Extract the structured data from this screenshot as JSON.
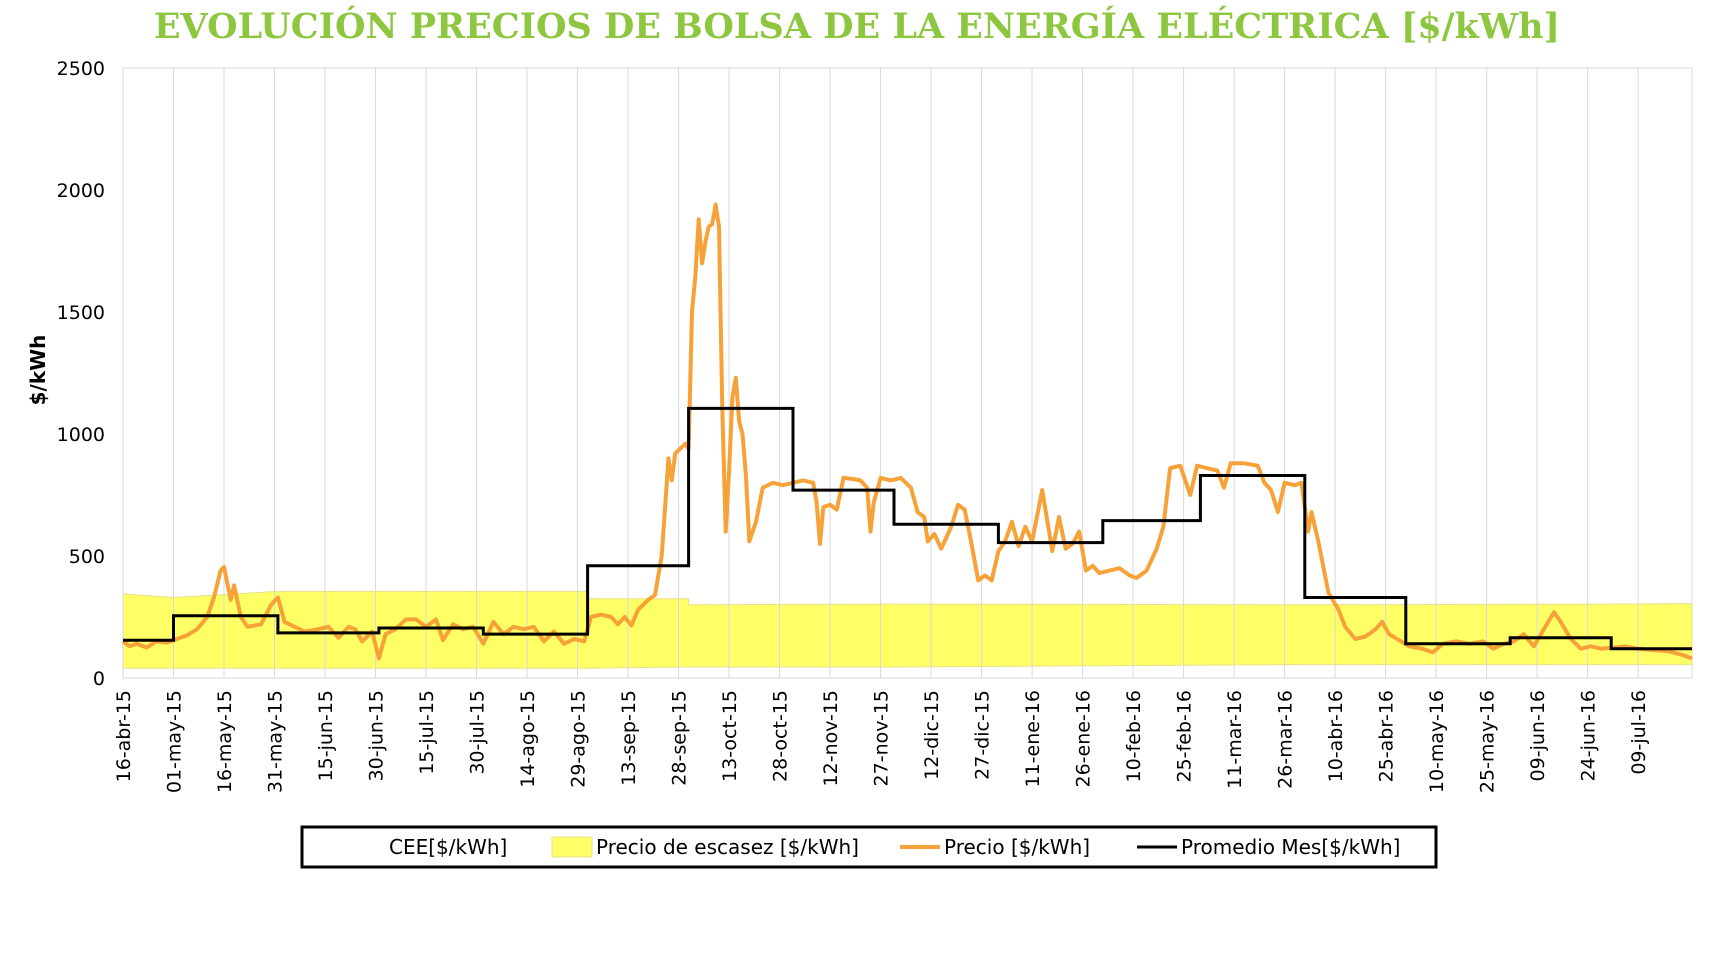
{
  "chart_data": {
    "type": "line",
    "title": "EVOLUCIÓN PRECIOS DE BOLSA DE LA ENERGÍA ELÉCTRICA [$/kWh]",
    "xlabel": "",
    "ylabel": "$/kWh",
    "ylim": [
      0,
      2500
    ],
    "yticks": [
      0,
      500,
      1000,
      1500,
      2000,
      2500
    ],
    "xlim": [
      "2015-04-16",
      "2016-07-25"
    ],
    "x_tick_labels": [
      "16-abr-15",
      "01-may-15",
      "16-may-15",
      "31-may-15",
      "15-jun-15",
      "30-jun-15",
      "15-jul-15",
      "30-jul-15",
      "14-ago-15",
      "29-ago-15",
      "13-sep-15",
      "28-sep-15",
      "13-oct-15",
      "28-oct-15",
      "12-nov-15",
      "27-nov-15",
      "12-dic-15",
      "27-dic-15",
      "11-ene-16",
      "26-ene-16",
      "10-feb-16",
      "25-feb-16",
      "11-mar-16",
      "26-mar-16",
      "10-abr-16",
      "25-abr-16",
      "10-may-16",
      "25-may-16",
      "09-jun-16",
      "24-jun-16",
      "09-jul-16"
    ],
    "grid": "vertical",
    "legend_position": "bottom",
    "legend": [
      {
        "name": "CEE[$/kWh]",
        "style": "none"
      },
      {
        "name": "Precio de escasez [$/kWh]",
        "style": "area"
      },
      {
        "name": "Precio [$/kWh]",
        "style": "line"
      },
      {
        "name": "Promedio Mes[$/kWh]",
        "style": "line"
      }
    ],
    "series": [
      {
        "name": "Precio de escasez [$/kWh]",
        "type": "band",
        "color": "#ffff66",
        "points": [
          {
            "x": "2015-04-16",
            "low": 40,
            "high": 345
          },
          {
            "x": "2015-05-01",
            "low": 40,
            "high": 330
          },
          {
            "x": "2015-06-01",
            "low": 40,
            "high": 355
          },
          {
            "x": "2015-09-01",
            "low": 40,
            "high": 355
          },
          {
            "x": "2015-09-01",
            "low": 40,
            "high": 325
          },
          {
            "x": "2015-10-01",
            "low": 45,
            "high": 325
          },
          {
            "x": "2015-10-01",
            "low": 45,
            "high": 300
          },
          {
            "x": "2015-12-01",
            "low": 45,
            "high": 303
          },
          {
            "x": "2016-04-01",
            "low": 55,
            "high": 300
          },
          {
            "x": "2016-07-01",
            "low": 55,
            "high": 303
          },
          {
            "x": "2016-07-25",
            "low": 55,
            "high": 305
          }
        ]
      },
      {
        "name": "Precio [$/kWh]",
        "type": "line",
        "color": "#f7a239",
        "points": [
          [
            "2015-04-16",
            150
          ],
          [
            "2015-04-18",
            130
          ],
          [
            "2015-04-20",
            140
          ],
          [
            "2015-04-23",
            125
          ],
          [
            "2015-04-26",
            150
          ],
          [
            "2015-04-29",
            145
          ],
          [
            "2015-05-02",
            160
          ],
          [
            "2015-05-05",
            175
          ],
          [
            "2015-05-08",
            200
          ],
          [
            "2015-05-11",
            250
          ],
          [
            "2015-05-13",
            330
          ],
          [
            "2015-05-15",
            440
          ],
          [
            "2015-05-16",
            455
          ],
          [
            "2015-05-18",
            320
          ],
          [
            "2015-05-19",
            380
          ],
          [
            "2015-05-21",
            250
          ],
          [
            "2015-05-23",
            210
          ],
          [
            "2015-05-27",
            220
          ],
          [
            "2015-05-30",
            300
          ],
          [
            "2015-06-01",
            330
          ],
          [
            "2015-06-03",
            230
          ],
          [
            "2015-06-06",
            210
          ],
          [
            "2015-06-09",
            190
          ],
          [
            "2015-06-13",
            200
          ],
          [
            "2015-06-16",
            210
          ],
          [
            "2015-06-19",
            165
          ],
          [
            "2015-06-22",
            210
          ],
          [
            "2015-06-24",
            200
          ],
          [
            "2015-06-26",
            150
          ],
          [
            "2015-06-29",
            190
          ],
          [
            "2015-07-01",
            80
          ],
          [
            "2015-07-03",
            180
          ],
          [
            "2015-07-06",
            200
          ],
          [
            "2015-07-09",
            240
          ],
          [
            "2015-07-12",
            240
          ],
          [
            "2015-07-15",
            210
          ],
          [
            "2015-07-18",
            240
          ],
          [
            "2015-07-20",
            155
          ],
          [
            "2015-07-23",
            220
          ],
          [
            "2015-07-26",
            200
          ],
          [
            "2015-07-29",
            210
          ],
          [
            "2015-08-01",
            140
          ],
          [
            "2015-08-04",
            230
          ],
          [
            "2015-08-07",
            180
          ],
          [
            "2015-08-10",
            210
          ],
          [
            "2015-08-13",
            200
          ],
          [
            "2015-08-16",
            210
          ],
          [
            "2015-08-19",
            150
          ],
          [
            "2015-08-22",
            190
          ],
          [
            "2015-08-25",
            140
          ],
          [
            "2015-08-28",
            160
          ],
          [
            "2015-08-31",
            150
          ],
          [
            "2015-09-02",
            250
          ],
          [
            "2015-09-05",
            260
          ],
          [
            "2015-09-08",
            250
          ],
          [
            "2015-09-10",
            220
          ],
          [
            "2015-09-12",
            250
          ],
          [
            "2015-09-14",
            215
          ],
          [
            "2015-09-16",
            280
          ],
          [
            "2015-09-19",
            320
          ],
          [
            "2015-09-21",
            340
          ],
          [
            "2015-09-23",
            500
          ],
          [
            "2015-09-24",
            700
          ],
          [
            "2015-09-25",
            900
          ],
          [
            "2015-09-26",
            810
          ],
          [
            "2015-09-27",
            920
          ],
          [
            "2015-09-30",
            960
          ],
          [
            "2015-10-01",
            940
          ],
          [
            "2015-10-02",
            1500
          ],
          [
            "2015-10-03",
            1650
          ],
          [
            "2015-10-04",
            1880
          ],
          [
            "2015-10-05",
            1700
          ],
          [
            "2015-10-06",
            1790
          ],
          [
            "2015-10-07",
            1850
          ],
          [
            "2015-10-08",
            1860
          ],
          [
            "2015-10-09",
            1940
          ],
          [
            "2015-10-10",
            1850
          ],
          [
            "2015-10-11",
            1100
          ],
          [
            "2015-10-12",
            600
          ],
          [
            "2015-10-13",
            850
          ],
          [
            "2015-10-14",
            1150
          ],
          [
            "2015-10-15",
            1230
          ],
          [
            "2015-10-16",
            1050
          ],
          [
            "2015-10-17",
            1000
          ],
          [
            "2015-10-18",
            830
          ],
          [
            "2015-10-19",
            560
          ],
          [
            "2015-10-21",
            640
          ],
          [
            "2015-10-23",
            780
          ],
          [
            "2015-10-26",
            800
          ],
          [
            "2015-10-29",
            790
          ],
          [
            "2015-11-01",
            800
          ],
          [
            "2015-11-04",
            810
          ],
          [
            "2015-11-07",
            800
          ],
          [
            "2015-11-08",
            720
          ],
          [
            "2015-11-09",
            550
          ],
          [
            "2015-11-10",
            700
          ],
          [
            "2015-11-12",
            710
          ],
          [
            "2015-11-14",
            690
          ],
          [
            "2015-11-16",
            820
          ],
          [
            "2015-11-19",
            815
          ],
          [
            "2015-11-21",
            810
          ],
          [
            "2015-11-23",
            780
          ],
          [
            "2015-11-24",
            600
          ],
          [
            "2015-11-25",
            720
          ],
          [
            "2015-11-27",
            820
          ],
          [
            "2015-11-30",
            810
          ],
          [
            "2015-12-03",
            820
          ],
          [
            "2015-12-06",
            780
          ],
          [
            "2015-12-08",
            680
          ],
          [
            "2015-12-10",
            660
          ],
          [
            "2015-12-11",
            560
          ],
          [
            "2015-12-13",
            590
          ],
          [
            "2015-12-15",
            530
          ],
          [
            "2015-12-18",
            620
          ],
          [
            "2015-12-20",
            710
          ],
          [
            "2015-12-22",
            690
          ],
          [
            "2015-12-24",
            550
          ],
          [
            "2015-12-26",
            400
          ],
          [
            "2015-12-28",
            420
          ],
          [
            "2015-12-30",
            400
          ],
          [
            "2016-01-01",
            520
          ],
          [
            "2016-01-03",
            560
          ],
          [
            "2016-01-05",
            640
          ],
          [
            "2016-01-07",
            540
          ],
          [
            "2016-01-09",
            620
          ],
          [
            "2016-01-11",
            560
          ],
          [
            "2016-01-14",
            770
          ],
          [
            "2016-01-17",
            520
          ],
          [
            "2016-01-19",
            660
          ],
          [
            "2016-01-21",
            530
          ],
          [
            "2016-01-23",
            550
          ],
          [
            "2016-01-25",
            600
          ],
          [
            "2016-01-27",
            440
          ],
          [
            "2016-01-29",
            460
          ],
          [
            "2016-01-31",
            430
          ],
          [
            "2016-02-03",
            440
          ],
          [
            "2016-02-06",
            450
          ],
          [
            "2016-02-09",
            420
          ],
          [
            "2016-02-11",
            410
          ],
          [
            "2016-02-14",
            440
          ],
          [
            "2016-02-17",
            530
          ],
          [
            "2016-02-19",
            620
          ],
          [
            "2016-02-21",
            860
          ],
          [
            "2016-02-24",
            870
          ],
          [
            "2016-02-27",
            750
          ],
          [
            "2016-02-29",
            870
          ],
          [
            "2016-03-03",
            860
          ],
          [
            "2016-03-06",
            850
          ],
          [
            "2016-03-08",
            780
          ],
          [
            "2016-03-10",
            880
          ],
          [
            "2016-03-14",
            880
          ],
          [
            "2016-03-18",
            870
          ],
          [
            "2016-03-20",
            800
          ],
          [
            "2016-03-22",
            770
          ],
          [
            "2016-03-24",
            680
          ],
          [
            "2016-03-26",
            800
          ],
          [
            "2016-03-29",
            790
          ],
          [
            "2016-03-31",
            800
          ],
          [
            "2016-04-02",
            600
          ],
          [
            "2016-04-03",
            680
          ],
          [
            "2016-04-05",
            560
          ],
          [
            "2016-04-08",
            350
          ],
          [
            "2016-04-11",
            280
          ],
          [
            "2016-04-13",
            210
          ],
          [
            "2016-04-16",
            160
          ],
          [
            "2016-04-19",
            170
          ],
          [
            "2016-04-22",
            200
          ],
          [
            "2016-04-24",
            230
          ],
          [
            "2016-04-26",
            180
          ],
          [
            "2016-04-29",
            155
          ],
          [
            "2016-05-02",
            130
          ],
          [
            "2016-05-06",
            120
          ],
          [
            "2016-05-09",
            105
          ],
          [
            "2016-05-12",
            140
          ],
          [
            "2016-05-16",
            150
          ],
          [
            "2016-05-20",
            140
          ],
          [
            "2016-05-24",
            150
          ],
          [
            "2016-05-27",
            120
          ],
          [
            "2016-05-30",
            140
          ],
          [
            "2016-06-02",
            150
          ],
          [
            "2016-06-05",
            180
          ],
          [
            "2016-06-08",
            130
          ],
          [
            "2016-06-11",
            200
          ],
          [
            "2016-06-14",
            270
          ],
          [
            "2016-06-16",
            230
          ],
          [
            "2016-06-19",
            160
          ],
          [
            "2016-06-22",
            120
          ],
          [
            "2016-06-25",
            130
          ],
          [
            "2016-06-28",
            120
          ],
          [
            "2016-07-02",
            125
          ],
          [
            "2016-07-05",
            130
          ],
          [
            "2016-07-09",
            120
          ],
          [
            "2016-07-13",
            115
          ],
          [
            "2016-07-18",
            110
          ],
          [
            "2016-07-22",
            95
          ],
          [
            "2016-07-25",
            80
          ]
        ]
      },
      {
        "name": "Promedio Mes[$/kWh]",
        "type": "step",
        "color": "#000000",
        "segments": [
          {
            "from": "2015-04-16",
            "to": "2015-05-01",
            "value": 155
          },
          {
            "from": "2015-05-01",
            "to": "2015-06-01",
            "value": 255
          },
          {
            "from": "2015-06-01",
            "to": "2015-07-01",
            "value": 185
          },
          {
            "from": "2015-07-01",
            "to": "2015-08-01",
            "value": 205
          },
          {
            "from": "2015-08-01",
            "to": "2015-09-01",
            "value": 180
          },
          {
            "from": "2015-09-01",
            "to": "2015-10-01",
            "value": 460
          },
          {
            "from": "2015-10-01",
            "to": "2015-11-01",
            "value": 1105
          },
          {
            "from": "2015-11-01",
            "to": "2015-12-01",
            "value": 770
          },
          {
            "from": "2015-12-01",
            "to": "2016-01-01",
            "value": 630
          },
          {
            "from": "2016-01-01",
            "to": "2016-02-01",
            "value": 555
          },
          {
            "from": "2016-02-01",
            "to": "2016-03-01",
            "value": 645
          },
          {
            "from": "2016-03-01",
            "to": "2016-04-01",
            "value": 830
          },
          {
            "from": "2016-04-01",
            "to": "2016-05-01",
            "value": 330
          },
          {
            "from": "2016-05-01",
            "to": "2016-06-01",
            "value": 140
          },
          {
            "from": "2016-06-01",
            "to": "2016-07-01",
            "value": 165
          },
          {
            "from": "2016-07-01",
            "to": "2016-07-25",
            "value": 120
          }
        ]
      }
    ]
  }
}
